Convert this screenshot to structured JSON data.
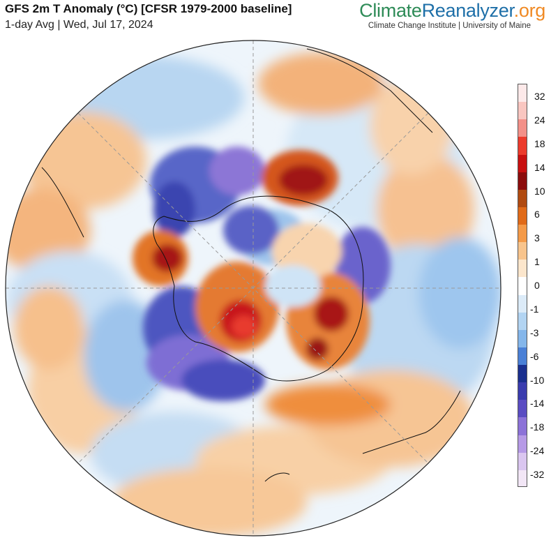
{
  "header": {
    "title": "GFS 2m T Anomaly (°C) [CFSR 1979-2000 baseline]",
    "subtitle": "1-day Avg | Wed, Jul 17, 2024"
  },
  "brand": {
    "part1": "Climate",
    "part2": "Reanalyzer",
    "part3": ".org",
    "tagline": "Climate Change Institute | University of Maine",
    "colors": {
      "climate": "#2e8b57",
      "reanalyzer": "#1e6fa8",
      "org": "#f08a24"
    }
  },
  "map": {
    "projection": "south-polar-orthographic",
    "icon": "globe-icon"
  },
  "legend": {
    "labels": [
      "32",
      "24",
      "18",
      "14",
      "10",
      "6",
      "3",
      "1",
      "0",
      "-1",
      "-3",
      "-6",
      "-10",
      "-14",
      "-18",
      "-24",
      "-32"
    ],
    "colors": [
      "#fde9e9",
      "#f9c6c0",
      "#f39088",
      "#ec3b2c",
      "#c81010",
      "#8b0c0c",
      "#b04a10",
      "#e06a18",
      "#f49a48",
      "#f8c48c",
      "#fce6cc",
      "#ffffff",
      "#dcebf8",
      "#b2d4f2",
      "#84b6ea",
      "#4a80d6",
      "#1a2f8e",
      "#3a3cae",
      "#5a4cc2",
      "#8c72d8",
      "#b69ae6",
      "#dac6f0",
      "#f2e6f6"
    ]
  }
}
